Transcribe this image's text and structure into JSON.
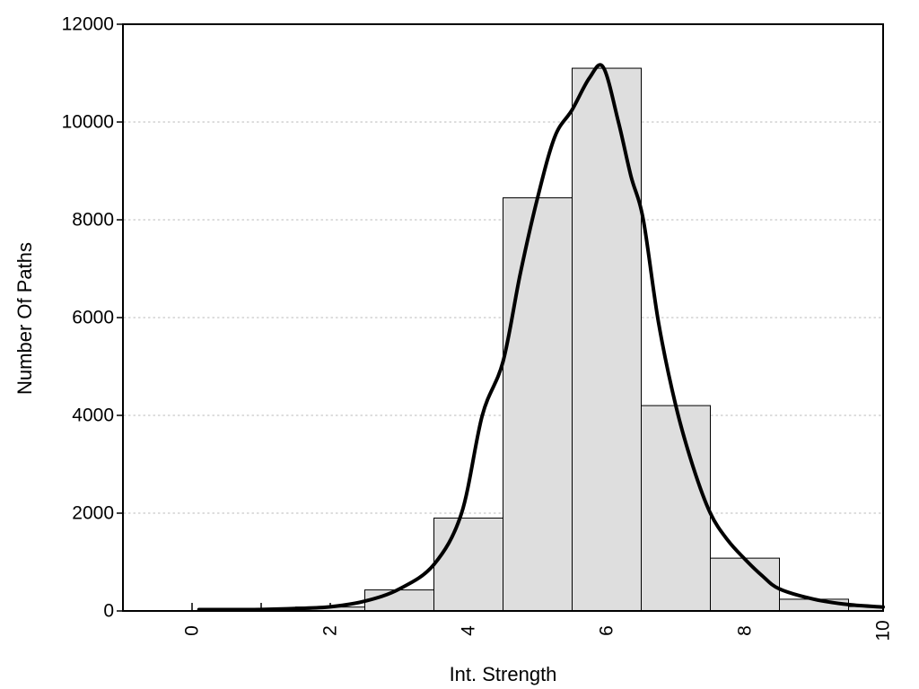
{
  "figure": {
    "background": "#ffffff"
  },
  "chart_data": {
    "type": "histogram",
    "overlay": "density-curve",
    "title": "",
    "xlabel": "Int. Strength",
    "ylabel": "Number Of Paths",
    "xlim": [
      -1,
      10
    ],
    "ylim": [
      0,
      12000
    ],
    "grid": "horizontal-dotted",
    "legend": "none",
    "x_axis": {
      "major_ticks": [
        {
          "value": 0,
          "label": "0"
        },
        {
          "value": 2,
          "label": "2"
        },
        {
          "value": 4,
          "label": "4"
        },
        {
          "value": 6,
          "label": "6"
        },
        {
          "value": 8,
          "label": "8"
        },
        {
          "value": 10,
          "label": "10"
        }
      ],
      "minor_ticks": [
        1,
        3,
        5,
        7,
        9
      ],
      "tick_style": "inside"
    },
    "y_axis": {
      "ticks": [
        {
          "value": 0,
          "label": "0"
        },
        {
          "value": 2000,
          "label": "2000"
        },
        {
          "value": 4000,
          "label": "4000"
        },
        {
          "value": 6000,
          "label": "6000"
        },
        {
          "value": 8000,
          "label": "8000"
        },
        {
          "value": 10000,
          "label": "10000"
        },
        {
          "value": 12000,
          "label": "12000"
        }
      ],
      "gridline_values": [
        2000,
        4000,
        6000,
        8000,
        10000
      ],
      "tick_style": "outside"
    },
    "bars": [
      {
        "x0": 1.5,
        "x1": 2.5,
        "count": 80
      },
      {
        "x0": 2.5,
        "x1": 3.5,
        "count": 430
      },
      {
        "x0": 3.5,
        "x1": 4.5,
        "count": 1900
      },
      {
        "x0": 4.5,
        "x1": 5.5,
        "count": 8450
      },
      {
        "x0": 5.5,
        "x1": 6.5,
        "count": 11100
      },
      {
        "x0": 6.5,
        "x1": 7.5,
        "count": 4200
      },
      {
        "x0": 7.5,
        "x1": 8.5,
        "count": 1080
      },
      {
        "x0": 8.5,
        "x1": 9.5,
        "count": 240
      },
      {
        "x0": 9.5,
        "x1": 10,
        "count": 90
      }
    ],
    "curve_points": [
      [
        0.1,
        5
      ],
      [
        0.5,
        15
      ],
      [
        1.0,
        30
      ],
      [
        1.5,
        50
      ],
      [
        2.0,
        85
      ],
      [
        2.5,
        200
      ],
      [
        3.0,
        450
      ],
      [
        3.5,
        950
      ],
      [
        3.9,
        2000
      ],
      [
        4.2,
        4000
      ],
      [
        4.5,
        5100
      ],
      [
        4.75,
        6900
      ],
      [
        5.0,
        8450
      ],
      [
        5.25,
        9700
      ],
      [
        5.5,
        10250
      ],
      [
        5.75,
        10900
      ],
      [
        5.95,
        11120
      ],
      [
        6.17,
        10000
      ],
      [
        6.35,
        8900
      ],
      [
        6.53,
        8000
      ],
      [
        6.75,
        5900
      ],
      [
        7.0,
        4200
      ],
      [
        7.25,
        2950
      ],
      [
        7.5,
        2000
      ],
      [
        7.75,
        1450
      ],
      [
        8.0,
        1060
      ],
      [
        8.25,
        720
      ],
      [
        8.5,
        450
      ],
      [
        9.0,
        240
      ],
      [
        9.5,
        130
      ],
      [
        10.0,
        80
      ]
    ],
    "colors": {
      "bar_fill": "#dedede",
      "bar_stroke": "#000000",
      "curve": "#000000",
      "grid": "#c8c8c8",
      "axis": "#000000",
      "text": "#000000"
    }
  }
}
